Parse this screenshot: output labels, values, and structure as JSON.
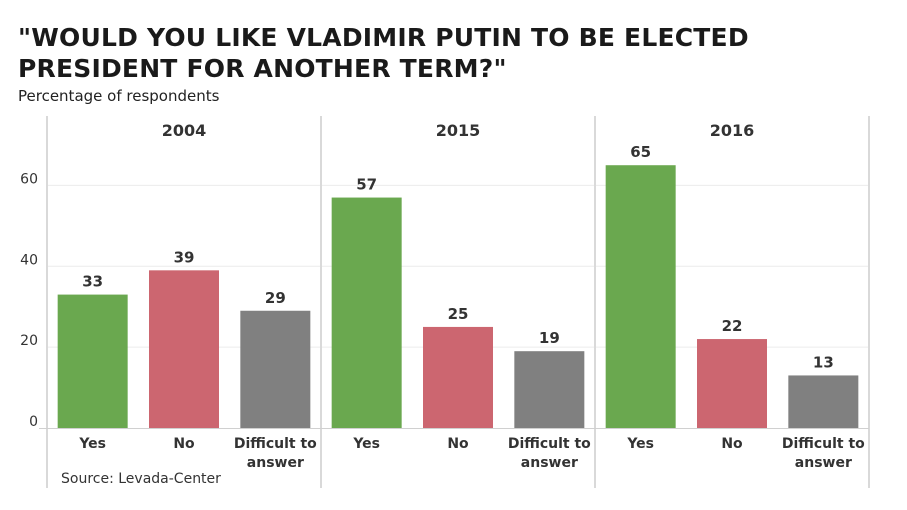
{
  "header": {
    "title": "\"WOULD YOU LIKE VLADIMIR PUTIN TO BE ELECTED PRESIDENT FOR ANOTHER TERM?\"",
    "subtitle": "Percentage of respondents"
  },
  "footer": {
    "source": "Source: Levada-Center"
  },
  "colors": {
    "yes": "#6aa84f",
    "no": "#cc6670",
    "difficult": "#808080"
  },
  "chart_data": {
    "type": "bar",
    "title": "\"WOULD YOU LIKE VLADIMIR PUTIN TO BE ELECTED PRESIDENT FOR ANOTHER TERM?\"",
    "subtitle": "Percentage of respondents",
    "ylabel": "",
    "ylim": [
      0,
      70
    ],
    "yticks": [
      0,
      20,
      40,
      60
    ],
    "grid": true,
    "panels": [
      {
        "label": "2004",
        "categories": [
          [
            "Yes"
          ],
          [
            "No"
          ],
          [
            "Difficult to",
            "answer"
          ]
        ],
        "values": [
          33,
          39,
          29
        ]
      },
      {
        "label": "2015",
        "categories": [
          [
            "Yes"
          ],
          [
            "No"
          ],
          [
            "Difficult to",
            "answer"
          ]
        ],
        "values": [
          57,
          25,
          19
        ]
      },
      {
        "label": "2016",
        "categories": [
          [
            "Yes"
          ],
          [
            "No"
          ],
          [
            "Difficult to",
            "answer"
          ]
        ],
        "values": [
          65,
          22,
          13
        ]
      }
    ]
  }
}
